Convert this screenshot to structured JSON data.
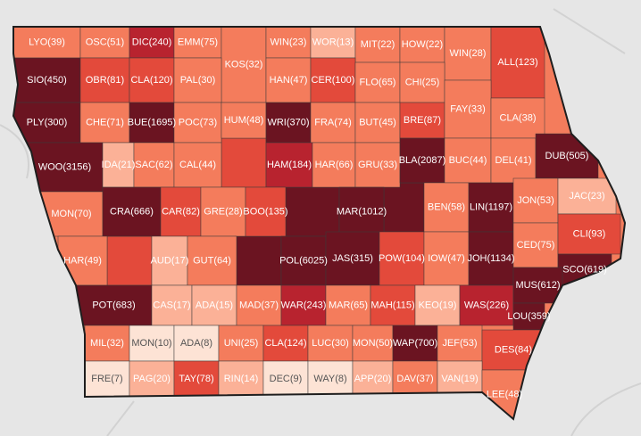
{
  "regions": [
    {
      "label": "LYO(39)",
      "color": "#f47c5c"
    },
    {
      "label": "OSC(51)",
      "color": "#f47c5c"
    },
    {
      "label": "DIC(240)",
      "color": "#b8232f"
    },
    {
      "label": "EMM(75)",
      "color": "#f47c5c"
    },
    {
      "label": "KOS(32)",
      "color": "#f47c5c"
    },
    {
      "label": "WIN(23)",
      "color": "#f47c5c"
    },
    {
      "label": "WOR(13)",
      "color": "#fbb197"
    },
    {
      "label": "MIT(22)",
      "color": "#f47c5c"
    },
    {
      "label": "HOW(22)",
      "color": "#f47c5c"
    },
    {
      "label": "WIN(28)",
      "color": "#f47c5c"
    },
    {
      "label": "ALL(123)",
      "color": "#e34a3b"
    },
    {
      "label": "SIO(450)",
      "color": "#6b1421"
    },
    {
      "label": "OBR(81)",
      "color": "#e34a3b"
    },
    {
      "label": "CLA(120)",
      "color": "#e34a3b"
    },
    {
      "label": "PAL(30)",
      "color": "#f47c5c"
    },
    {
      "label": "HAN(47)",
      "color": "#f47c5c"
    },
    {
      "label": "CER(100)",
      "color": "#e34a3b"
    },
    {
      "label": "FLO(65)",
      "color": "#f47c5c"
    },
    {
      "label": "CHI(25)",
      "color": "#f47c5c"
    },
    {
      "label": "PLY(300)",
      "color": "#6b1421"
    },
    {
      "label": "CHE(71)",
      "color": "#f47c5c"
    },
    {
      "label": "BUE(1695)",
      "color": "#6b1421"
    },
    {
      "label": "POC(73)",
      "color": "#f47c5c"
    },
    {
      "label": "HUM(48)",
      "color": "#f47c5c"
    },
    {
      "label": "WRI(370)",
      "color": "#6b1421"
    },
    {
      "label": "FRA(74)",
      "color": "#f47c5c"
    },
    {
      "label": "BUT(45)",
      "color": "#f47c5c"
    },
    {
      "label": "BRE(87)",
      "color": "#e34a3b"
    },
    {
      "label": "FAY(33)",
      "color": "#f47c5c"
    },
    {
      "label": "CLA(38)",
      "color": "#f47c5c"
    },
    {
      "label": "WOO(3156)",
      "color": "#6b1421"
    },
    {
      "label": "IDA(21)",
      "color": "#fbb197"
    },
    {
      "label": "SAC(62)",
      "color": "#f47c5c"
    },
    {
      "label": "CAL(44)",
      "color": "#f47c5c"
    },
    {
      "label": "HAM(184)",
      "color": "#b8232f"
    },
    {
      "label": "HAR(66)",
      "color": "#f47c5c"
    },
    {
      "label": "GRU(33)",
      "color": "#f47c5c"
    },
    {
      "label": "BLA(2087)",
      "color": "#6b1421"
    },
    {
      "label": "BUC(44)",
      "color": "#f47c5c"
    },
    {
      "label": "DEL(41)",
      "color": "#f47c5c"
    },
    {
      "label": "DUB(505)",
      "color": "#6b1421"
    },
    {
      "label": "MON(70)",
      "color": "#f47c5c"
    },
    {
      "label": "CRA(666)",
      "color": "#6b1421"
    },
    {
      "label": "CAR(82)",
      "color": "#e34a3b"
    },
    {
      "label": "GRE(28)",
      "color": "#f47c5c"
    },
    {
      "label": "BOO(135)",
      "color": "#e34a3b"
    },
    {
      "label": "MAR(1012)",
      "color": "#6b1421"
    },
    {
      "label": "BEN(58)",
      "color": "#f47c5c"
    },
    {
      "label": "LIN(1197)",
      "color": "#6b1421"
    },
    {
      "label": "JON(53)",
      "color": "#f47c5c"
    },
    {
      "label": "JAC(23)",
      "color": "#fbb197"
    },
    {
      "label": "HAR(49)",
      "color": "#f47c5c"
    },
    {
      "label": "AUD(17)",
      "color": "#fbb197"
    },
    {
      "label": "GUT(64)",
      "color": "#f47c5c"
    },
    {
      "label": "POL(6025)",
      "color": "#6b1421"
    },
    {
      "label": "JAS(315)",
      "color": "#6b1421"
    },
    {
      "label": "POW(104)",
      "color": "#e34a3b"
    },
    {
      "label": "IOW(47)",
      "color": "#f47c5c"
    },
    {
      "label": "JOH(1134)",
      "color": "#6b1421"
    },
    {
      "label": "CED(75)",
      "color": "#f47c5c"
    },
    {
      "label": "CLI(93)",
      "color": "#e34a3b"
    },
    {
      "label": "SCO(619)",
      "color": "#6b1421"
    },
    {
      "label": "POT(683)",
      "color": "#6b1421"
    },
    {
      "label": "CAS(17)",
      "color": "#fbb197"
    },
    {
      "label": "ADA(15)",
      "color": "#fbb197"
    },
    {
      "label": "MAD(37)",
      "color": "#f47c5c"
    },
    {
      "label": "WAR(243)",
      "color": "#b8232f"
    },
    {
      "label": "MAR(65)",
      "color": "#f47c5c"
    },
    {
      "label": "MAH(115)",
      "color": "#e34a3b"
    },
    {
      "label": "KEO(19)",
      "color": "#fbb197"
    },
    {
      "label": "WAS(226)",
      "color": "#b8232f"
    },
    {
      "label": "MUS(612)",
      "color": "#6b1421"
    },
    {
      "label": "LOU(359)",
      "color": "#6b1421"
    },
    {
      "label": "MIL(32)",
      "color": "#f47c5c"
    },
    {
      "label": "MON(10)",
      "color": "#fde3d5"
    },
    {
      "label": "ADA(8)",
      "color": "#fde3d5"
    },
    {
      "label": "UNI(25)",
      "color": "#f47c5c"
    },
    {
      "label": "CLA(124)",
      "color": "#e34a3b"
    },
    {
      "label": "LUC(30)",
      "color": "#f47c5c"
    },
    {
      "label": "MON(50)",
      "color": "#f47c5c"
    },
    {
      "label": "WAP(700)",
      "color": "#6b1421"
    },
    {
      "label": "JEF(53)",
      "color": "#f47c5c"
    },
    {
      "label": "DES(84)",
      "color": "#e34a3b"
    },
    {
      "label": "FRE(7)",
      "color": "#fde3d5"
    },
    {
      "label": "PAG(20)",
      "color": "#fbb197"
    },
    {
      "label": "TAY(78)",
      "color": "#e34a3b"
    },
    {
      "label": "RIN(14)",
      "color": "#fbb197"
    },
    {
      "label": "DEC(9)",
      "color": "#fde3d5"
    },
    {
      "label": "WAY(8)",
      "color": "#fde3d5"
    },
    {
      "label": "APP(20)",
      "color": "#fbb197"
    },
    {
      "label": "DAV(37)",
      "color": "#f47c5c"
    },
    {
      "label": "VAN(19)",
      "color": "#fbb197"
    },
    {
      "label": "LEE(48)",
      "color": "#f47c5c"
    }
  ]
}
